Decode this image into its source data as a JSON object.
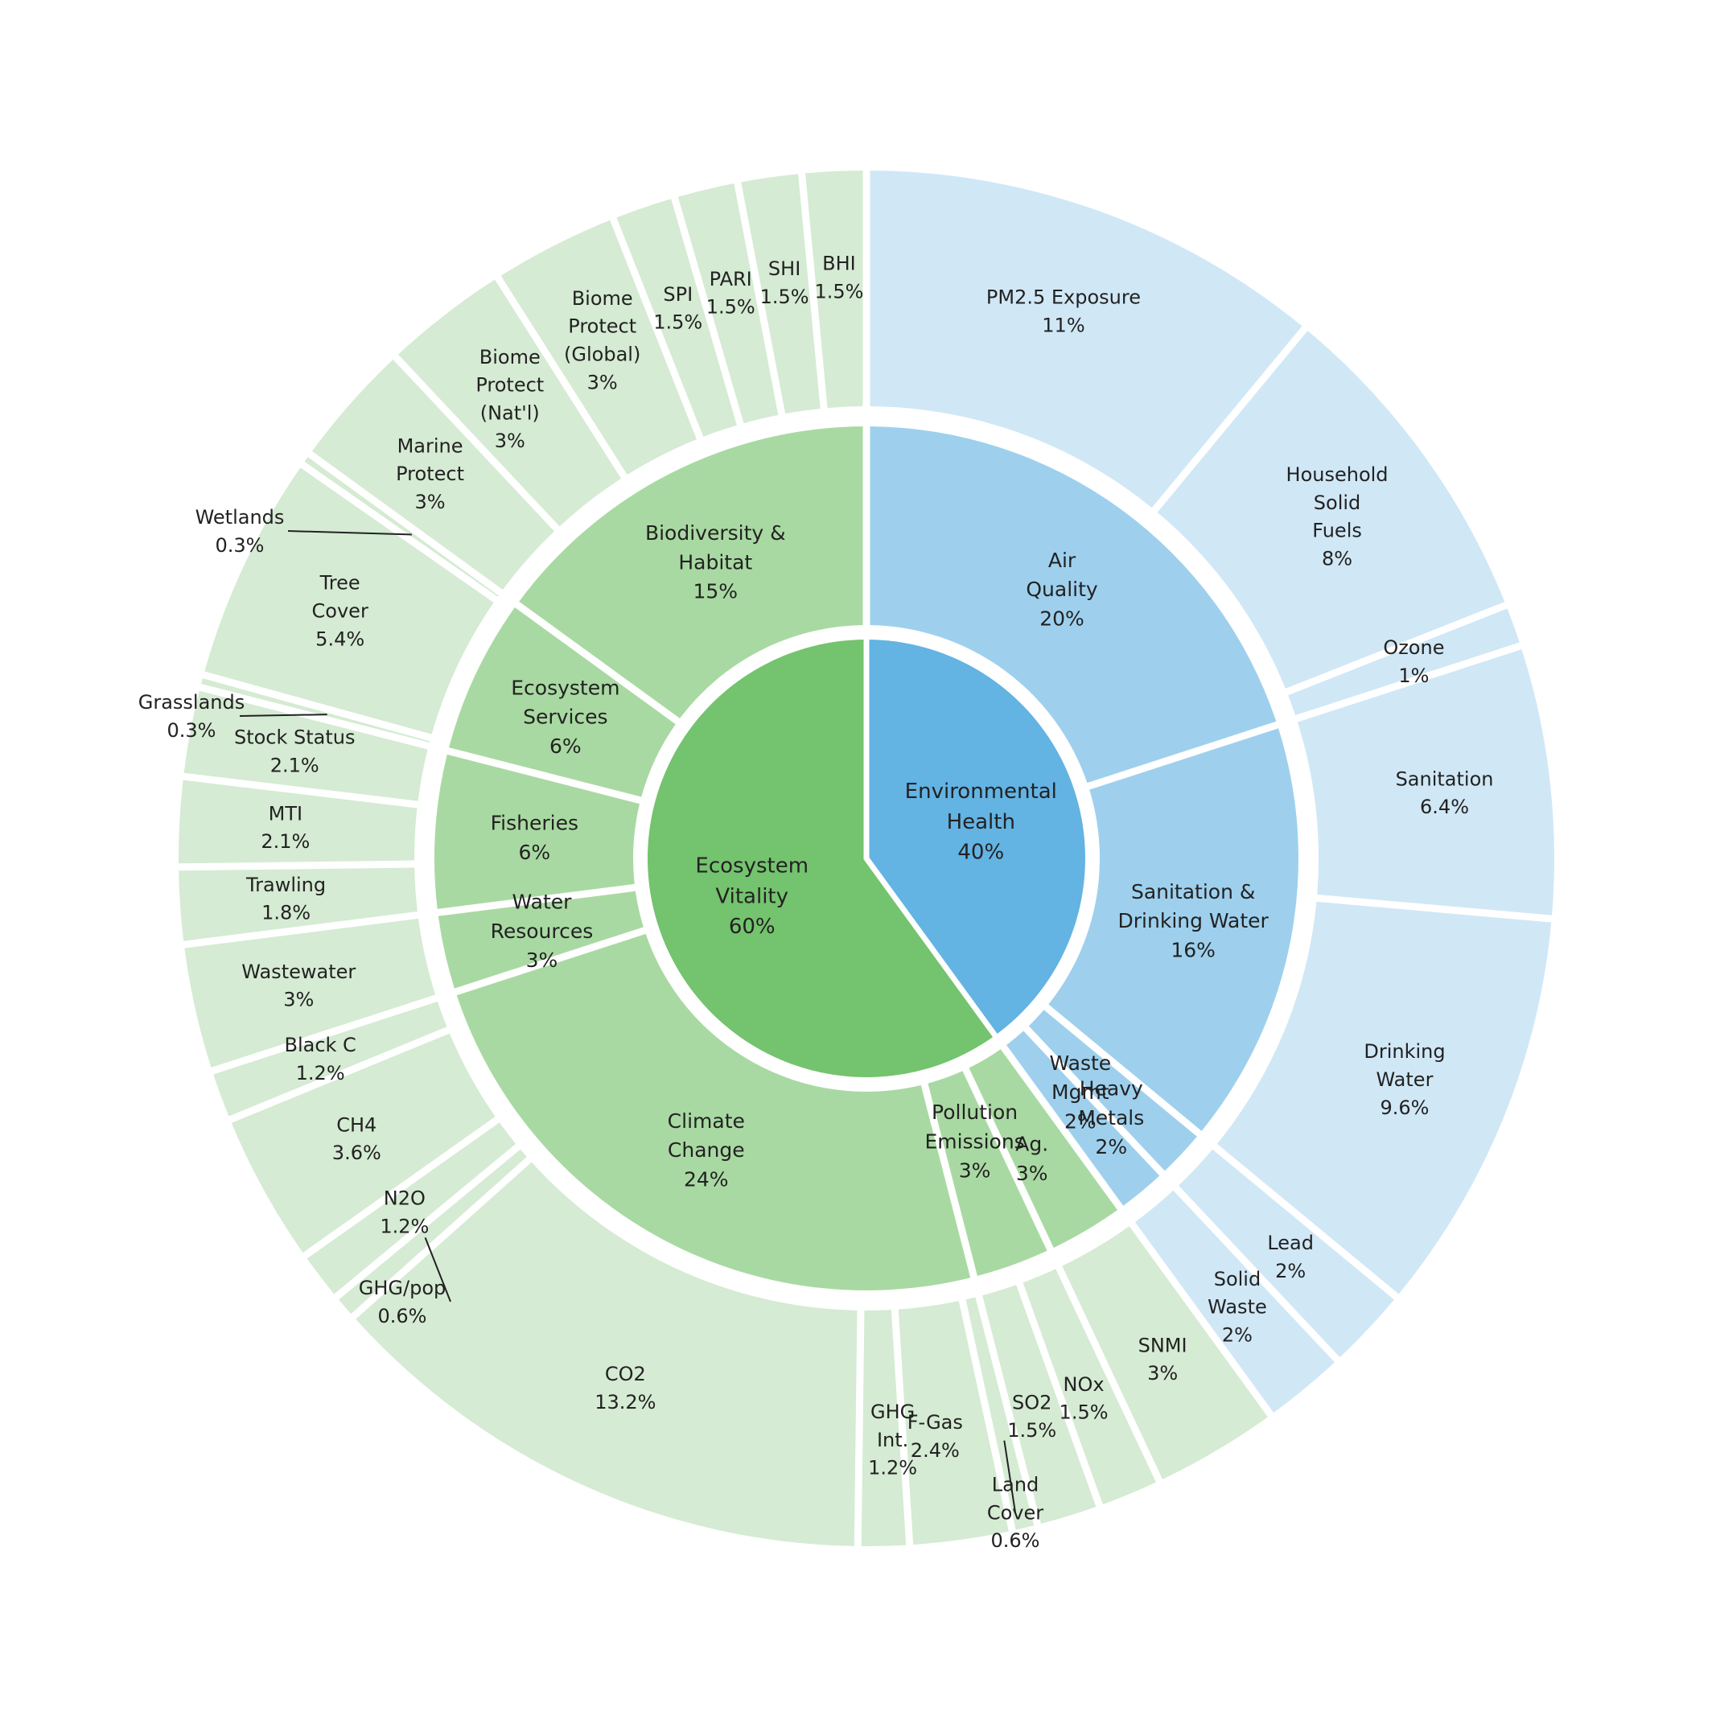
{
  "chart_data": {
    "type": "sunburst",
    "colors": {
      "eh_inner": "#63b3e3",
      "eh_middle": "#9ed0ee",
      "eh_outer": "#d0e7f6",
      "ev_inner": "#74c36e",
      "ev_middle": "#a9d9a2",
      "ev_outer": "#d5ebd3",
      "separator": "#ffffff",
      "leader": "#222222"
    },
    "inner": [
      {
        "id": "eh",
        "name": "Environmental Health",
        "lines": [
          "Environmental",
          "Health",
          "40%"
        ],
        "value": 40,
        "group": "eh"
      },
      {
        "id": "ev",
        "name": "Ecosystem Vitality",
        "lines": [
          "Ecosystem",
          "Vitality",
          "60%"
        ],
        "value": 60,
        "group": "ev"
      }
    ],
    "middle": [
      {
        "id": "air",
        "lines": [
          "Air",
          "Quality",
          "20%"
        ],
        "value": 20,
        "group": "eh"
      },
      {
        "id": "sdw",
        "lines": [
          "Sanitation &",
          "Drinking Water",
          "16%"
        ],
        "value": 16,
        "group": "eh"
      },
      {
        "id": "hm",
        "lines": [
          "Heavy",
          "Metals",
          "2%"
        ],
        "value": 2,
        "group": "eh"
      },
      {
        "id": "wm",
        "lines": [
          "Waste",
          "Mgmt",
          "2%"
        ],
        "value": 2,
        "group": "eh"
      },
      {
        "id": "ag",
        "lines": [
          "Ag.",
          "3%"
        ],
        "value": 3,
        "group": "ev"
      },
      {
        "id": "pe",
        "lines": [
          "Pollution",
          "Emissions",
          "3%"
        ],
        "value": 3,
        "group": "ev"
      },
      {
        "id": "cc",
        "lines": [
          "Climate",
          "Change",
          "24%"
        ],
        "value": 24,
        "group": "ev"
      },
      {
        "id": "wr",
        "lines": [
          "Water",
          "Resources",
          "3%"
        ],
        "value": 3,
        "group": "ev"
      },
      {
        "id": "fi",
        "lines": [
          "Fisheries",
          "6%"
        ],
        "value": 6,
        "group": "ev"
      },
      {
        "id": "es",
        "lines": [
          "Ecosystem",
          "Services",
          "6%"
        ],
        "value": 6,
        "group": "ev"
      },
      {
        "id": "bh",
        "lines": [
          "Biodiversity &",
          "Habitat",
          "15%"
        ],
        "value": 15,
        "group": "ev"
      }
    ],
    "outer": [
      {
        "id": "pm25",
        "lines": [
          "PM2.5 Exposure",
          "11%"
        ],
        "value": 11,
        "group": "eh"
      },
      {
        "id": "hsf",
        "lines": [
          "Household",
          "Solid",
          "Fuels",
          "8%"
        ],
        "value": 8,
        "group": "eh"
      },
      {
        "id": "ozone",
        "lines": [
          "Ozone",
          "1%"
        ],
        "value": 1,
        "group": "eh"
      },
      {
        "id": "san",
        "lines": [
          "Sanitation",
          "6.4%"
        ],
        "value": 6.4,
        "group": "eh"
      },
      {
        "id": "dw",
        "lines": [
          "Drinking",
          "Water",
          "9.6%"
        ],
        "value": 9.6,
        "group": "eh"
      },
      {
        "id": "lead",
        "lines": [
          "Lead",
          "2%"
        ],
        "value": 2,
        "group": "eh"
      },
      {
        "id": "sw",
        "lines": [
          "Solid",
          "Waste",
          "2%"
        ],
        "value": 2,
        "group": "eh"
      },
      {
        "id": "snmi",
        "lines": [
          "SNMI",
          "3%"
        ],
        "value": 3,
        "group": "ev"
      },
      {
        "id": "nox",
        "lines": [
          "NOx",
          "1.5%"
        ],
        "value": 1.5,
        "group": "ev"
      },
      {
        "id": "so2",
        "lines": [
          "SO2",
          "1.5%"
        ],
        "value": 1.5,
        "group": "ev"
      },
      {
        "id": "lc",
        "lines": [
          "Land",
          "Cover",
          "0.6%"
        ],
        "value": 0.6,
        "group": "ev",
        "external": true
      },
      {
        "id": "fgas",
        "lines": [
          "F-Gas",
          "2.4%"
        ],
        "value": 2.4,
        "group": "ev"
      },
      {
        "id": "ghgint",
        "lines": [
          "GHG",
          "Int.",
          "1.2%"
        ],
        "value": 1.2,
        "group": "ev"
      },
      {
        "id": "co2",
        "lines": [
          "CO2",
          "13.2%"
        ],
        "value": 13.2,
        "group": "ev"
      },
      {
        "id": "ghgpop",
        "lines": [
          "GHG/pop",
          "0.6%"
        ],
        "value": 0.6,
        "group": "ev",
        "external": true
      },
      {
        "id": "n2o",
        "lines": [
          "N2O",
          "1.2%"
        ],
        "value": 1.2,
        "group": "ev"
      },
      {
        "id": "ch4",
        "lines": [
          "CH4",
          "3.6%"
        ],
        "value": 3.6,
        "group": "ev"
      },
      {
        "id": "blackc",
        "lines": [
          "Black C",
          "1.2%"
        ],
        "value": 1.2,
        "group": "ev"
      },
      {
        "id": "ww",
        "lines": [
          "Wastewater",
          "3%"
        ],
        "value": 3,
        "group": "ev"
      },
      {
        "id": "trawl",
        "lines": [
          "Trawling",
          "1.8%"
        ],
        "value": 1.8,
        "group": "ev"
      },
      {
        "id": "mti",
        "lines": [
          "MTI",
          "2.1%"
        ],
        "value": 2.1,
        "group": "ev"
      },
      {
        "id": "stock",
        "lines": [
          "Stock Status",
          "2.1%"
        ],
        "value": 2.1,
        "group": "ev"
      },
      {
        "id": "grass",
        "lines": [
          "Grasslands",
          "0.3%"
        ],
        "value": 0.3,
        "group": "ev",
        "external": true
      },
      {
        "id": "tree",
        "lines": [
          "Tree",
          "Cover",
          "5.4%"
        ],
        "value": 5.4,
        "group": "ev"
      },
      {
        "id": "wet",
        "lines": [
          "Wetlands",
          "0.3%"
        ],
        "value": 0.3,
        "group": "ev",
        "external": true
      },
      {
        "id": "marine",
        "lines": [
          "Marine",
          "Protect",
          "3%"
        ],
        "value": 3,
        "group": "ev"
      },
      {
        "id": "bpn",
        "lines": [
          "Biome",
          "Protect",
          "(Nat'l)",
          "3%"
        ],
        "value": 3,
        "group": "ev"
      },
      {
        "id": "bpg",
        "lines": [
          "Biome",
          "Protect",
          "(Global)",
          "3%"
        ],
        "value": 3,
        "group": "ev"
      },
      {
        "id": "spi",
        "lines": [
          "SPI",
          "1.5%"
        ],
        "value": 1.5,
        "group": "ev"
      },
      {
        "id": "pari",
        "lines": [
          "PARI",
          "1.5%"
        ],
        "value": 1.5,
        "group": "ev"
      },
      {
        "id": "shi",
        "lines": [
          "SHI",
          "1.5%"
        ],
        "value": 1.5,
        "group": "ev"
      },
      {
        "id": "bhi",
        "lines": [
          "BHI",
          "1.5%"
        ],
        "value": 1.5,
        "group": "ev"
      }
    ]
  }
}
